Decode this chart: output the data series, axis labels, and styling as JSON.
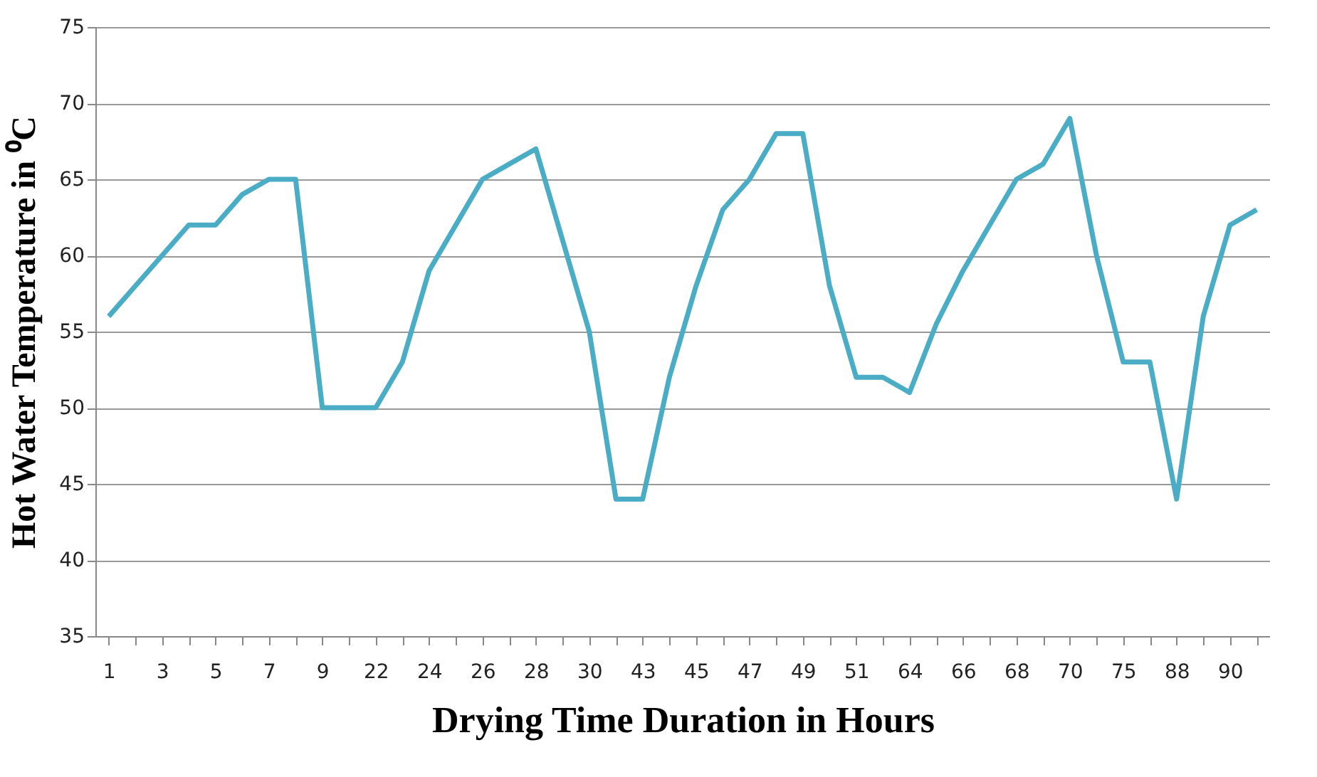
{
  "chart_data": {
    "type": "line",
    "xlabel": "Drying Time Duration in Hours",
    "ylabel": "Hot Water Temperature in ⁰C",
    "categories": [
      "1",
      null,
      "3",
      null,
      "5",
      null,
      "7",
      null,
      "9",
      null,
      "22",
      null,
      "24",
      null,
      "26",
      null,
      "28",
      null,
      "30",
      null,
      "43",
      null,
      "45",
      null,
      "47",
      null,
      "49",
      null,
      "51",
      null,
      "64",
      null,
      "66",
      null,
      "68",
      null,
      "70",
      null,
      "75",
      null,
      "88",
      null,
      "90",
      null
    ],
    "series": [
      {
        "color": "#4bacc6",
        "values": [
          56,
          58,
          60,
          62,
          62,
          64,
          65,
          65,
          50,
          50,
          50,
          53,
          59,
          62,
          65,
          66,
          67,
          61,
          55,
          44,
          44,
          52,
          58,
          63,
          65,
          68,
          68,
          58,
          52,
          52,
          51,
          55.5,
          59,
          62,
          65,
          66,
          69,
          60,
          53,
          53,
          44,
          56,
          62,
          63
        ]
      }
    ],
    "ylim": [
      35,
      75
    ],
    "yticks": [
      35,
      40,
      45,
      50,
      55,
      60,
      65,
      70,
      75
    ],
    "grid": "y",
    "marker": "none",
    "line_style": "solid",
    "legend": false
  }
}
